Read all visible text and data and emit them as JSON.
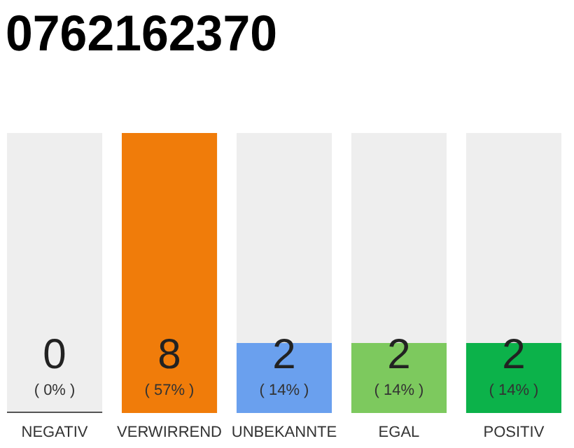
{
  "chart_data": {
    "type": "bar",
    "title": "0762162370",
    "categories": [
      "NEGATIV",
      "VERWIRREND",
      "UNBEKANNTE",
      "EGAL",
      "POSITIV"
    ],
    "values": [
      0,
      8,
      2,
      2,
      2
    ],
    "colors": [
      "#555555",
      "#f07c0a",
      "#6aa0ee",
      "#7dc95e",
      "#0cb24a"
    ],
    "value_labels": [
      "0",
      "8",
      "2",
      "2",
      "2"
    ],
    "annotations": [
      "( 0% )",
      "( 57% )",
      "( 14% )",
      "( 14% )",
      "( 14% )"
    ]
  }
}
